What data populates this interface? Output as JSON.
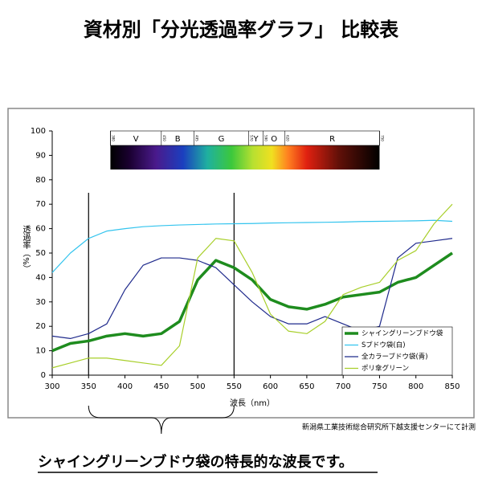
{
  "chart_data": {
    "type": "line",
    "title": "資材別「分光透過率グラフ」 比較表",
    "x_label": "波長（nm）",
    "y_label": "透過率（%）",
    "x": [
      300,
      325,
      350,
      375,
      400,
      425,
      450,
      475,
      500,
      525,
      550,
      575,
      600,
      625,
      650,
      675,
      700,
      725,
      750,
      775,
      800,
      825,
      850
    ],
    "series": [
      {
        "name": "シャイングリーンブドウ袋",
        "color": "#1e8c1e",
        "width": 3.5,
        "values": [
          10,
          13,
          14,
          16,
          17,
          16,
          17,
          22,
          39,
          47,
          44,
          39,
          31,
          28,
          27,
          29,
          32,
          33,
          34,
          38,
          40,
          45,
          50
        ]
      },
      {
        "name": "Sブドウ袋(白)",
        "color": "#33c4ee",
        "width": 1.2,
        "values": [
          42,
          50,
          56,
          59,
          60,
          60.8,
          61.2,
          61.5,
          61.7,
          61.9,
          62,
          62.1,
          62.3,
          62.4,
          62.5,
          62.6,
          62.7,
          62.9,
          63,
          63.1,
          63.2,
          63.4,
          63
        ]
      },
      {
        "name": "全カラーブドウ袋(青)",
        "color": "#1f2a8c",
        "width": 1.2,
        "values": [
          16,
          15,
          17,
          21,
          35,
          45,
          48,
          48,
          47,
          44,
          37,
          30,
          24,
          21,
          21,
          24,
          21,
          18,
          20,
          48,
          54,
          55,
          56
        ]
      },
      {
        "name": "ポリ傘グリーン",
        "color": "#a8cf2a",
        "width": 1.2,
        "values": [
          3,
          5,
          7,
          7,
          6,
          5,
          4,
          12,
          48,
          56,
          55,
          42,
          25,
          18,
          17,
          22,
          33,
          36,
          38,
          47,
          51,
          62,
          70
        ]
      }
    ],
    "xlim": [
      300,
      850
    ],
    "xticks": [
      300,
      350,
      400,
      450,
      500,
      550,
      600,
      650,
      700,
      750,
      800,
      850
    ],
    "ylim": [
      0,
      100
    ],
    "yticks": [
      0,
      10,
      20,
      30,
      40,
      50,
      60,
      70,
      80,
      90,
      100
    ],
    "markers": [
      350,
      550
    ],
    "spectrum": {
      "bands": [
        "V",
        "B",
        "G",
        "Y",
        "O",
        "R"
      ],
      "bounds": [
        380,
        450,
        495,
        570,
        590,
        620,
        750
      ]
    },
    "legend": "lower-right",
    "source": "新潟県工業技術総合研究所下越支援センターにて計測",
    "caption": "シャイングリーンブドウ袋の特長的な波長です。"
  }
}
